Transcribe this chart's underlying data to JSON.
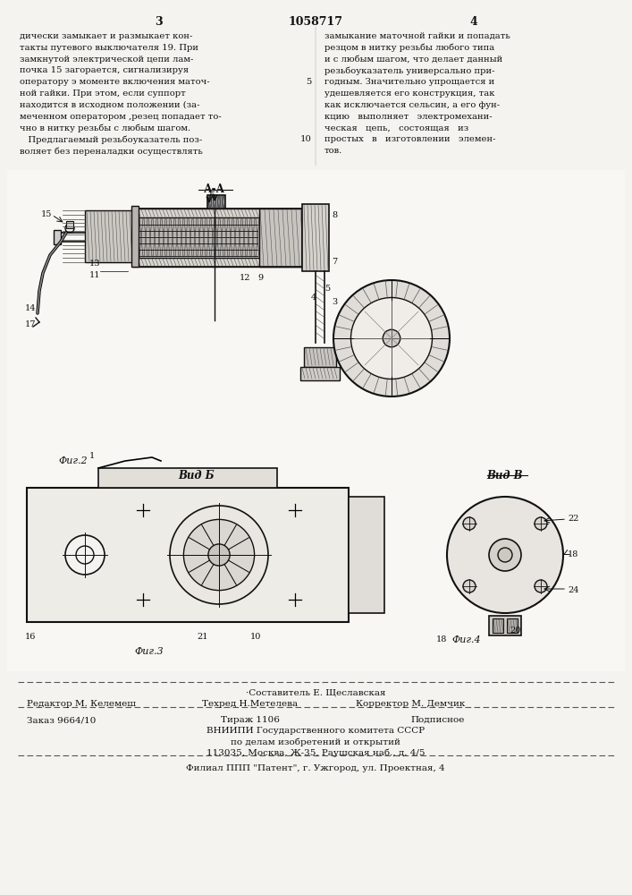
{
  "page_number_left": "3",
  "page_number_right": "4",
  "patent_number": "1058717",
  "bg_color": "#f5f3ef",
  "text_color": "#1a1a1a",
  "left_text_lines": [
    "дически замыкает и размыкает кон-",
    "такты путевого выключателя 19. При",
    "замкнутой электрической цепи лам-",
    "почка 15 загорается, сигнализируя",
    "оператору э моменте включения маточ-",
    "ной гайки. При этом, если суппорт",
    "находится в исходном положении (за-",
    "меченном оператором ,резец попадает то-",
    "чно в нитку резьбы с любым шагом.",
    "   Предлагаемый резьбоуказатель поз-",
    "воляет без переналадки осуществлять"
  ],
  "right_text_lines": [
    "замыкание маточной гайки и попадать",
    "резцом в нитку резьбы любого типа",
    "и с любым шагом, что делает данный",
    "резьбоуказатель универсально при-",
    "годным. Значительно упрощается и",
    "удешевляется его конструкция, так",
    "как исключается сельсин, а его фун-",
    "кцию   выполняет   электромехани-",
    "ческая   цепь,   состоящая   из",
    "простых   в   изготовлении   элемен-",
    "тов."
  ],
  "footer_line1_left": "Редактор М. Келемеш",
  "footer_line1_center": "Техред Н.Метелева",
  "footer_line1_right": "Корректор М. Демчик",
  "footer_line0_center": "·Составитель Е. Щеславская",
  "footer_line2_left": "Заказ 9664/10",
  "footer_line2_center": "Тираж 1106",
  "footer_line2_right": "Подписное",
  "footer_line3": "ВНИИПИ Государственного комитета СССР",
  "footer_line4": "по делам изобретений и открытий",
  "footer_line5": "113035, Москва, Ж-35, Раушская наб., д. 4/5",
  "footer_line6": "Филиал ППП \"Патент\", г. Ужгород, ул. Проектная, 4"
}
